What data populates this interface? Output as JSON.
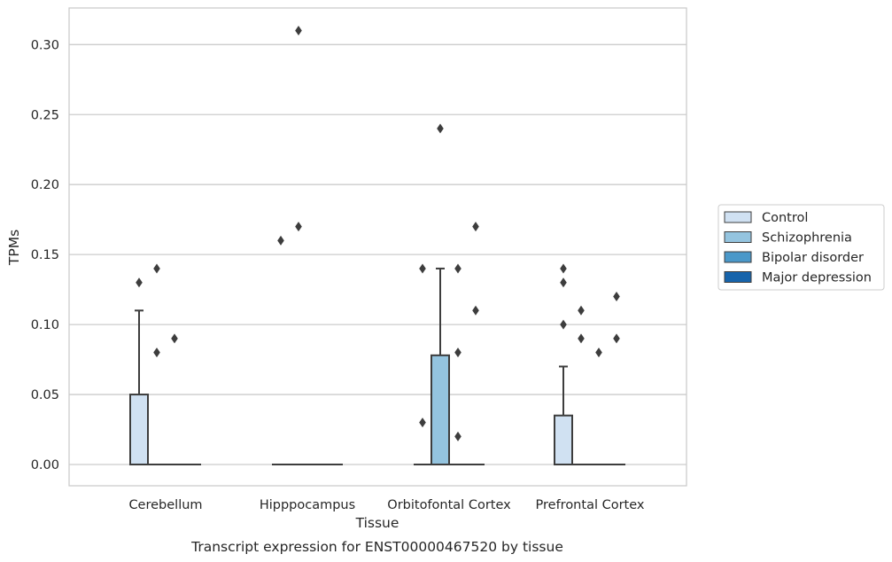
{
  "chart_data": {
    "type": "box",
    "xlabel": "Tissue",
    "ylabel": "TPMs",
    "caption": "Transcript expression for ENST00000467520 by tissue",
    "categories": [
      "Cerebellum",
      "Hipppocampus",
      "Orbitofontal Cortex",
      "Prefrontal Cortex"
    ],
    "yticks": [
      "0.00",
      "0.05",
      "0.10",
      "0.15",
      "0.20",
      "0.25",
      "0.30"
    ],
    "ylim": [
      -0.015,
      0.325
    ],
    "grid": true,
    "legend_position": "center-right",
    "series": [
      {
        "name": "Control",
        "color": "#d0e1f2",
        "boxes": [
          {
            "category": "Cerebellum",
            "min": 0,
            "q1": 0,
            "median": 0,
            "q3": 0.05,
            "max": 0.11,
            "outliers": [
              0.13
            ]
          },
          {
            "category": "Hipppocampus",
            "min": 0,
            "q1": 0,
            "median": 0,
            "q3": 0,
            "max": 0,
            "outliers": [
              0.16
            ]
          },
          {
            "category": "Orbitofontal Cortex",
            "min": 0,
            "q1": 0,
            "median": 0,
            "q3": 0,
            "max": 0,
            "outliers": [
              0.14,
              0.03
            ]
          },
          {
            "category": "Prefrontal Cortex",
            "min": 0,
            "q1": 0,
            "median": 0,
            "q3": 0.035,
            "max": 0.07,
            "outliers": [
              0.14,
              0.13,
              0.1
            ]
          }
        ]
      },
      {
        "name": "Schizophrenia",
        "color": "#94c4df",
        "boxes": [
          {
            "category": "Cerebellum",
            "min": 0,
            "q1": 0,
            "median": 0,
            "q3": 0,
            "max": 0,
            "outliers": [
              0.14,
              0.08
            ]
          },
          {
            "category": "Hipppocampus",
            "min": 0,
            "q1": 0,
            "median": 0,
            "q3": 0,
            "max": 0,
            "outliers": [
              0.31,
              0.17
            ]
          },
          {
            "category": "Orbitofontal Cortex",
            "min": 0,
            "q1": 0,
            "median": 0,
            "q3": 0.078,
            "max": 0.14,
            "outliers": [
              0.24
            ]
          },
          {
            "category": "Prefrontal Cortex",
            "min": 0,
            "q1": 0,
            "median": 0,
            "q3": 0,
            "max": 0,
            "outliers": [
              0.11,
              0.09
            ]
          }
        ]
      },
      {
        "name": "Bipolar disorder",
        "color": "#4a98c9",
        "boxes": [
          {
            "category": "Cerebellum",
            "min": 0,
            "q1": 0,
            "median": 0,
            "q3": 0,
            "max": 0,
            "outliers": [
              0.09
            ]
          },
          {
            "category": "Hipppocampus",
            "min": 0,
            "q1": 0,
            "median": 0,
            "q3": 0,
            "max": 0,
            "outliers": []
          },
          {
            "category": "Orbitofontal Cortex",
            "min": 0,
            "q1": 0,
            "median": 0,
            "q3": 0,
            "max": 0,
            "outliers": [
              0.14,
              0.08,
              0.02
            ]
          },
          {
            "category": "Prefrontal Cortex",
            "min": 0,
            "q1": 0,
            "median": 0,
            "q3": 0,
            "max": 0,
            "outliers": [
              0.08
            ]
          }
        ]
      },
      {
        "name": "Major depression",
        "color": "#1764ab",
        "boxes": [
          {
            "category": "Cerebellum",
            "min": 0,
            "q1": 0,
            "median": 0,
            "q3": 0,
            "max": 0,
            "outliers": []
          },
          {
            "category": "Hipppocampus",
            "min": 0,
            "q1": 0,
            "median": 0,
            "q3": 0,
            "max": 0,
            "outliers": []
          },
          {
            "category": "Orbitofontal Cortex",
            "min": 0,
            "q1": 0,
            "median": 0,
            "q3": 0,
            "max": 0,
            "outliers": [
              0.17,
              0.11
            ]
          },
          {
            "category": "Prefrontal Cortex",
            "min": 0,
            "q1": 0,
            "median": 0,
            "q3": 0,
            "max": 0,
            "outliers": [
              0.12,
              0.09
            ]
          }
        ]
      }
    ]
  }
}
